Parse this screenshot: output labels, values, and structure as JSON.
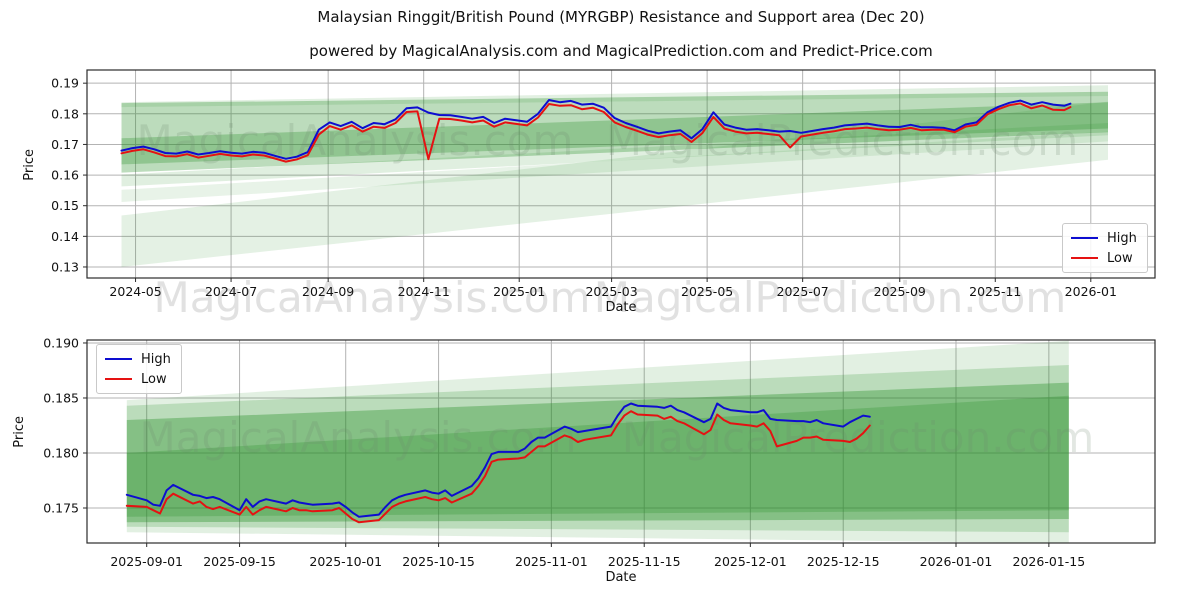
{
  "title": "Malaysian Ringgit/British Pound (MYRGBP) Resistance and Support area (Dec 20)",
  "subtitle": "powered by MagicalAnalysis.com and MagicalPrediction.com and Predict-Price.com",
  "colors": {
    "high_line": "#0d0dd0",
    "low_line": "#e51212",
    "band_green": "#228B22",
    "grid": "#b3b3b3",
    "axis": "#2b2b2b",
    "tick_text": "#111111",
    "watermark_plot": "rgba(110,135,110,0.20)",
    "watermark_band": "rgba(90,90,90,0.18)"
  },
  "band_watermarks": [
    "MagicalAnalysis.com",
    "MagicalPrediction.com"
  ],
  "chart_data": {
    "charts": [
      {
        "type": "line",
        "name": "full-history",
        "xlabel": "Date",
        "ylabel": "Price",
        "ylim": [
          0.1264,
          0.1943
        ],
        "xlim": [
          "2024-03-31",
          "2026-02-11"
        ],
        "grid": true,
        "legend_position": "lower right",
        "y_ticks": [
          {
            "v": 0.19,
            "label": "0.19"
          },
          {
            "v": 0.18,
            "label": "0.18"
          },
          {
            "v": 0.17,
            "label": "0.17"
          },
          {
            "v": 0.16,
            "label": "0.16"
          },
          {
            "v": 0.15,
            "label": "0.15"
          },
          {
            "v": 0.14,
            "label": "0.14"
          },
          {
            "v": 0.13,
            "label": "0.13"
          }
        ],
        "x_ticks": [
          {
            "date": "2024-05-01",
            "label": "2024-05"
          },
          {
            "date": "2024-07-01",
            "label": "2024-07"
          },
          {
            "date": "2024-09-01",
            "label": "2024-09"
          },
          {
            "date": "2024-11-01",
            "label": "2024-11"
          },
          {
            "date": "2025-01-01",
            "label": "2025-01"
          },
          {
            "date": "2025-03-01",
            "label": "2025-03"
          },
          {
            "date": "2025-05-01",
            "label": "2025-05"
          },
          {
            "date": "2025-07-01",
            "label": "2025-07"
          },
          {
            "date": "2025-09-01",
            "label": "2025-09"
          },
          {
            "date": "2025-11-01",
            "label": "2025-11"
          },
          {
            "date": "2026-01-01",
            "label": "2026-01"
          }
        ],
        "watermarks": [
          "MagicalAnalysis.com",
          "MagicalPrediction.com"
        ],
        "bands": [
          {
            "x0": "2024-04-22",
            "x1": "2026-01-12",
            "t0": 0.1835,
            "b0": 0.1608,
            "t1": 0.1872,
            "b1": 0.174,
            "o": 0.3
          },
          {
            "x0": "2024-04-22",
            "x1": "2026-01-12",
            "t0": 0.172,
            "b0": 0.1635,
            "t1": 0.1838,
            "b1": 0.1752,
            "o": 0.28
          },
          {
            "x0": "2024-04-22",
            "x1": "2026-01-12",
            "t0": 0.1838,
            "b0": 0.1822,
            "t1": 0.1893,
            "b1": 0.1858,
            "o": 0.13
          },
          {
            "x0": "2024-04-22",
            "x1": "2026-01-12",
            "t0": 0.1602,
            "b0": 0.1563,
            "t1": 0.177,
            "b1": 0.173,
            "o": 0.14
          },
          {
            "x0": "2024-04-22",
            "x1": "2026-01-12",
            "t0": 0.1552,
            "b0": 0.1512,
            "t1": 0.1742,
            "b1": 0.171,
            "o": 0.1
          },
          {
            "x0": "2024-04-22",
            "x1": "2026-01-12",
            "t0": 0.1468,
            "b0": 0.13,
            "t1": 0.184,
            "b1": 0.165,
            "o": 0.12
          }
        ],
        "dates": [
          "2024-04-22",
          "2024-04-29",
          "2024-05-06",
          "2024-05-13",
          "2024-05-20",
          "2024-05-27",
          "2024-06-03",
          "2024-06-10",
          "2024-06-17",
          "2024-06-24",
          "2024-07-01",
          "2024-07-08",
          "2024-07-15",
          "2024-07-22",
          "2024-07-29",
          "2024-08-05",
          "2024-08-12",
          "2024-08-19",
          "2024-08-26",
          "2024-09-02",
          "2024-09-09",
          "2024-09-16",
          "2024-09-23",
          "2024-09-30",
          "2024-10-07",
          "2024-10-14",
          "2024-10-21",
          "2024-10-28",
          "2024-11-04",
          "2024-11-11",
          "2024-11-18",
          "2024-11-25",
          "2024-12-02",
          "2024-12-09",
          "2024-12-16",
          "2024-12-23",
          "2024-12-30",
          "2025-01-06",
          "2025-01-13",
          "2025-01-20",
          "2025-01-27",
          "2025-02-03",
          "2025-02-10",
          "2025-02-17",
          "2025-02-24",
          "2025-03-03",
          "2025-03-10",
          "2025-03-17",
          "2025-03-24",
          "2025-03-31",
          "2025-04-07",
          "2025-04-14",
          "2025-04-21",
          "2025-04-28",
          "2025-05-05",
          "2025-05-12",
          "2025-05-19",
          "2025-05-26",
          "2025-06-02",
          "2025-06-09",
          "2025-06-16",
          "2025-06-23",
          "2025-06-30",
          "2025-07-07",
          "2025-07-14",
          "2025-07-21",
          "2025-07-28",
          "2025-08-04",
          "2025-08-11",
          "2025-08-18",
          "2025-08-25",
          "2025-09-01",
          "2025-09-08",
          "2025-09-15",
          "2025-09-22",
          "2025-09-29",
          "2025-10-06",
          "2025-10-13",
          "2025-10-20",
          "2025-10-27",
          "2025-11-03",
          "2025-11-10",
          "2025-11-17",
          "2025-11-24",
          "2025-12-01",
          "2025-12-08",
          "2025-12-15",
          "2025-12-19"
        ],
        "series": [
          {
            "name": "High",
            "color": "high_line",
            "values": [
              0.168,
              0.1688,
              0.1693,
              0.1684,
              0.1672,
              0.167,
              0.1677,
              0.1667,
              0.1672,
              0.1678,
              0.1673,
              0.167,
              0.1676,
              0.1673,
              0.1663,
              0.1653,
              0.166,
              0.1675,
              0.1748,
              0.1772,
              0.176,
              0.1774,
              0.1753,
              0.177,
              0.1766,
              0.1782,
              0.1818,
              0.1821,
              0.1804,
              0.1796,
              0.1795,
              0.179,
              0.1784,
              0.179,
              0.177,
              0.1784,
              0.1779,
              0.1774,
              0.18,
              0.1845,
              0.1838,
              0.1842,
              0.183,
              0.1833,
              0.182,
              0.1786,
              0.177,
              0.1758,
              0.1745,
              0.1736,
              0.1742,
              0.1746,
              0.172,
              0.175,
              0.1805,
              0.1765,
              0.1755,
              0.1748,
              0.175,
              0.1746,
              0.1742,
              0.1744,
              0.1738,
              0.1744,
              0.175,
              0.1755,
              0.1762,
              0.1765,
              0.1768,
              0.1762,
              0.1758,
              0.1757,
              0.1764,
              0.1756,
              0.1756,
              0.1754,
              0.1746,
              0.1765,
              0.1772,
              0.1805,
              0.1823,
              0.1836,
              0.1843,
              0.183,
              0.1838,
              0.183,
              0.1826,
              0.1833
            ]
          },
          {
            "name": "Low",
            "color": "low_line",
            "values": [
              0.1671,
              0.1679,
              0.1684,
              0.1674,
              0.1662,
              0.1661,
              0.1668,
              0.1657,
              0.1663,
              0.1669,
              0.1664,
              0.1661,
              0.1667,
              0.1664,
              0.1654,
              0.1644,
              0.1651,
              0.1665,
              0.1732,
              0.176,
              0.1748,
              0.1762,
              0.1742,
              0.1758,
              0.1754,
              0.177,
              0.1806,
              0.1808,
              0.1652,
              0.1784,
              0.1783,
              0.1778,
              0.1772,
              0.1778,
              0.1758,
              0.1772,
              0.1767,
              0.1762,
              0.1788,
              0.1832,
              0.1826,
              0.1828,
              0.1815,
              0.182,
              0.1806,
              0.1772,
              0.1757,
              0.1745,
              0.1732,
              0.1724,
              0.173,
              0.1734,
              0.1708,
              0.1737,
              0.179,
              0.1752,
              0.1742,
              0.1736,
              0.1738,
              0.1734,
              0.173,
              0.169,
              0.1726,
              0.1732,
              0.1738,
              0.1743,
              0.175,
              0.1752,
              0.1755,
              0.175,
              0.1746,
              0.1748,
              0.1754,
              0.1746,
              0.1748,
              0.1748,
              0.174,
              0.1758,
              0.1764,
              0.1798,
              0.1815,
              0.1828,
              0.1834,
              0.1818,
              0.1827,
              0.1813,
              0.1812,
              0.1822
            ]
          }
        ]
      },
      {
        "type": "line",
        "name": "recent-zoom",
        "xlabel": "Date",
        "ylabel": "Price",
        "ylim": [
          0.17182,
          0.19027
        ],
        "xlim": [
          "2025-08-23",
          "2026-01-31"
        ],
        "grid": true,
        "legend_position": "upper left",
        "y_ticks": [
          {
            "v": 0.19,
            "label": "0.190"
          },
          {
            "v": 0.185,
            "label": "0.185"
          },
          {
            "v": 0.18,
            "label": "0.180"
          },
          {
            "v": 0.175,
            "label": "0.175"
          }
        ],
        "x_ticks": [
          {
            "date": "2025-09-01",
            "label": "2025-09-01"
          },
          {
            "date": "2025-09-15",
            "label": "2025-09-15"
          },
          {
            "date": "2025-10-01",
            "label": "2025-10-01"
          },
          {
            "date": "2025-10-15",
            "label": "2025-10-15"
          },
          {
            "date": "2025-11-01",
            "label": "2025-11-01"
          },
          {
            "date": "2025-11-15",
            "label": "2025-11-15"
          },
          {
            "date": "2025-12-01",
            "label": "2025-12-01"
          },
          {
            "date": "2025-12-15",
            "label": "2025-12-15"
          },
          {
            "date": "2026-01-01",
            "label": "2026-01-01"
          },
          {
            "date": "2026-01-15",
            "label": "2026-01-15"
          }
        ],
        "watermarks": [
          "MagicalAnalysis.com",
          "MagicalPrediction.com"
        ],
        "bands": [
          {
            "x0": "2025-08-29",
            "x1": "2026-01-18",
            "t0": 0.1848,
            "b0": 0.1728,
            "t1": 0.1902,
            "b1": 0.1718,
            "o": 0.13
          },
          {
            "x0": "2025-08-29",
            "x1": "2026-01-18",
            "t0": 0.1843,
            "b0": 0.1733,
            "t1": 0.188,
            "b1": 0.1728,
            "o": 0.2
          },
          {
            "x0": "2025-08-29",
            "x1": "2026-01-18",
            "t0": 0.183,
            "b0": 0.1737,
            "t1": 0.1864,
            "b1": 0.174,
            "o": 0.35
          },
          {
            "x0": "2025-08-29",
            "x1": "2026-01-18",
            "t0": 0.18,
            "b0": 0.1742,
            "t1": 0.1852,
            "b1": 0.1748,
            "o": 0.25
          }
        ],
        "dates": [
          "2025-08-29",
          "2025-09-01",
          "2025-09-02",
          "2025-09-03",
          "2025-09-04",
          "2025-09-05",
          "2025-09-08",
          "2025-09-09",
          "2025-09-10",
          "2025-09-11",
          "2025-09-12",
          "2025-09-15",
          "2025-09-16",
          "2025-09-17",
          "2025-09-18",
          "2025-09-19",
          "2025-09-22",
          "2025-09-23",
          "2025-09-24",
          "2025-09-25",
          "2025-09-26",
          "2025-09-29",
          "2025-09-30",
          "2025-10-01",
          "2025-10-02",
          "2025-10-03",
          "2025-10-06",
          "2025-10-07",
          "2025-10-08",
          "2025-10-09",
          "2025-10-10",
          "2025-10-13",
          "2025-10-14",
          "2025-10-15",
          "2025-10-16",
          "2025-10-17",
          "2025-10-20",
          "2025-10-21",
          "2025-10-22",
          "2025-10-23",
          "2025-10-24",
          "2025-10-27",
          "2025-10-28",
          "2025-10-29",
          "2025-10-30",
          "2025-10-31",
          "2025-11-03",
          "2025-11-04",
          "2025-11-05",
          "2025-11-06",
          "2025-11-07",
          "2025-11-10",
          "2025-11-11",
          "2025-11-12",
          "2025-11-13",
          "2025-11-14",
          "2025-11-17",
          "2025-11-18",
          "2025-11-19",
          "2025-11-20",
          "2025-11-21",
          "2025-11-24",
          "2025-11-25",
          "2025-11-26",
          "2025-11-27",
          "2025-11-28",
          "2025-12-01",
          "2025-12-02",
          "2025-12-03",
          "2025-12-04",
          "2025-12-05",
          "2025-12-08",
          "2025-12-09",
          "2025-12-10",
          "2025-12-11",
          "2025-12-12",
          "2025-12-15",
          "2025-12-16",
          "2025-12-17",
          "2025-12-18",
          "2025-12-19"
        ],
        "series": [
          {
            "name": "High",
            "color": "high_line",
            "values": [
              0.1762,
              0.1757,
              0.1753,
              0.1752,
              0.1766,
              0.1771,
              0.1762,
              0.1761,
              0.1759,
              0.176,
              0.1758,
              0.1748,
              0.1758,
              0.1751,
              0.1756,
              0.1758,
              0.1754,
              0.1757,
              0.1755,
              0.1754,
              0.1753,
              0.1754,
              0.1755,
              0.1751,
              0.1746,
              0.1742,
              0.1744,
              0.1751,
              0.1757,
              0.176,
              0.1762,
              0.1766,
              0.1764,
              0.1763,
              0.1766,
              0.1761,
              0.177,
              0.1777,
              0.1787,
              0.1799,
              0.1801,
              0.1801,
              0.1804,
              0.181,
              0.1814,
              0.1814,
              0.1824,
              0.1822,
              0.1819,
              0.182,
              0.1821,
              0.1824,
              0.1834,
              0.1842,
              0.1845,
              0.1843,
              0.1842,
              0.1841,
              0.1843,
              0.1839,
              0.1837,
              0.1828,
              0.1831,
              0.1845,
              0.1841,
              0.1839,
              0.1837,
              0.1837,
              0.1839,
              0.1831,
              0.183,
              0.1829,
              0.1829,
              0.1828,
              0.183,
              0.1827,
              0.1824,
              0.1828,
              0.1831,
              0.1834,
              0.1833
            ]
          },
          {
            "name": "Low",
            "color": "low_line",
            "values": [
              0.1752,
              0.1751,
              0.1748,
              0.1745,
              0.1758,
              0.1763,
              0.1754,
              0.1756,
              0.1751,
              0.1749,
              0.1751,
              0.1744,
              0.1751,
              0.1744,
              0.1748,
              0.1751,
              0.1747,
              0.175,
              0.1748,
              0.1748,
              0.1747,
              0.1748,
              0.175,
              0.1745,
              0.174,
              0.1737,
              0.1739,
              0.1745,
              0.1751,
              0.1754,
              0.1756,
              0.176,
              0.1758,
              0.1757,
              0.1759,
              0.1755,
              0.1763,
              0.177,
              0.1779,
              0.1792,
              0.1794,
              0.1795,
              0.1796,
              0.1801,
              0.1806,
              0.1806,
              0.1816,
              0.1814,
              0.181,
              0.1812,
              0.1813,
              0.1816,
              0.1826,
              0.1834,
              0.1838,
              0.1835,
              0.1834,
              0.1831,
              0.1833,
              0.1829,
              0.1827,
              0.1817,
              0.1821,
              0.1835,
              0.183,
              0.1827,
              0.1825,
              0.1824,
              0.1827,
              0.182,
              0.1806,
              0.1811,
              0.1814,
              0.1814,
              0.1815,
              0.1812,
              0.1811,
              0.181,
              0.1813,
              0.1818,
              0.1825
            ]
          }
        ]
      }
    ]
  }
}
